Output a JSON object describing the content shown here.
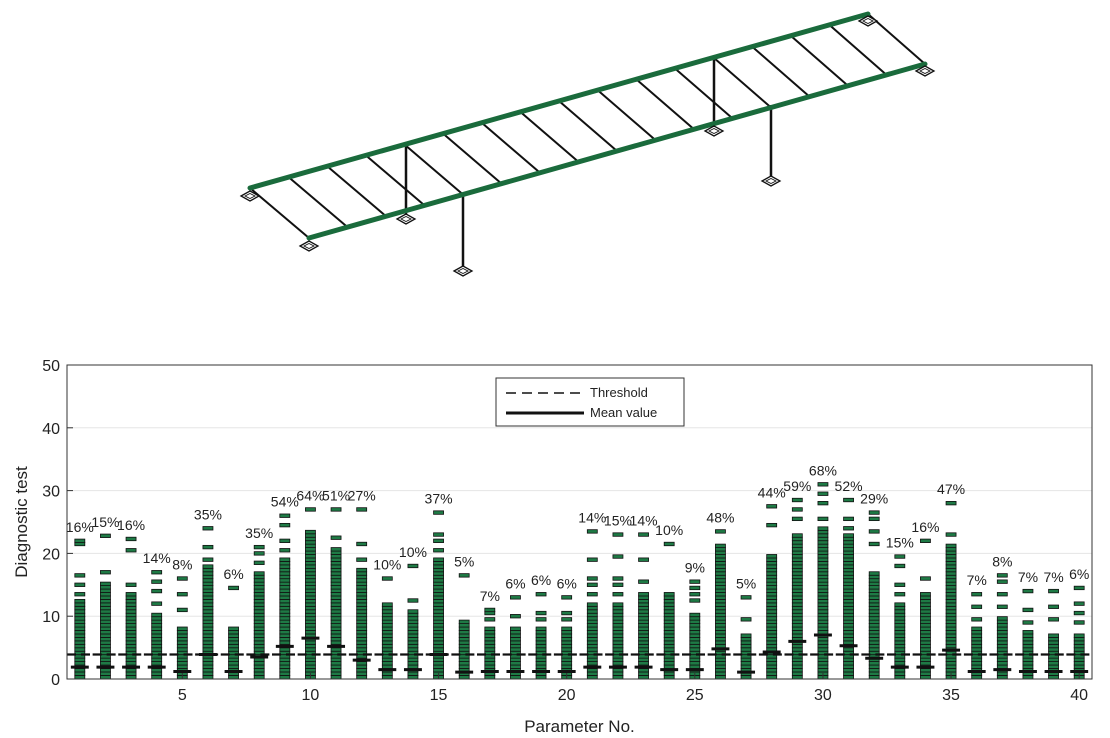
{
  "colors": {
    "beam": "#1a6b3c",
    "member": "#111111",
    "marker_fill": "#1e7a45",
    "marker_edge": "#111111",
    "grid": "#e5e5e5",
    "axis": "#333333"
  },
  "bridge_icon": "truss-bridge-schematic",
  "chart_data": {
    "type": "scatter",
    "title": "",
    "xlabel": "Parameter No.",
    "ylabel": "Diagnostic test",
    "xlim": [
      0.5,
      40.5
    ],
    "ylim": [
      0,
      50
    ],
    "xticks": [
      5,
      10,
      15,
      20,
      25,
      30,
      35,
      40
    ],
    "yticks": [
      0,
      10,
      20,
      30,
      40,
      50
    ],
    "grid": "horizontal",
    "legend": {
      "placement": "top-center",
      "entries": [
        {
          "label": "Threshold",
          "style": "dashed"
        },
        {
          "label": "Mean value",
          "style": "solid"
        }
      ]
    },
    "parameters": [
      1,
      2,
      3,
      4,
      5,
      6,
      7,
      8,
      9,
      10,
      11,
      12,
      13,
      14,
      15,
      16,
      17,
      18,
      19,
      20,
      21,
      22,
      23,
      24,
      25,
      26,
      27,
      28,
      29,
      30,
      31,
      32,
      33,
      34,
      35,
      36,
      37,
      38,
      39,
      40
    ],
    "percent_labels": [
      "16%",
      "15%",
      "16%",
      "14%",
      "8%",
      "35%",
      "6%",
      "35%",
      "54%",
      "64%",
      "51%",
      "27%",
      "10%",
      "10%",
      "37%",
      "5%",
      "7%",
      "6%",
      "6%",
      "6%",
      "14%",
      "15%",
      "14%",
      "10%",
      "9%",
      "48%",
      "5%",
      "44%",
      "59%",
      "68%",
      "52%",
      "29%",
      "15%",
      "16%",
      "47%",
      "7%",
      "8%",
      "7%",
      "7%",
      "6%"
    ],
    "threshold": [
      3.9,
      3.9,
      3.9,
      3.9,
      3.9,
      3.9,
      3.9,
      3.9,
      3.9,
      3.9,
      3.9,
      3.9,
      3.9,
      3.9,
      3.9,
      3.9,
      3.9,
      3.9,
      3.9,
      3.9,
      3.9,
      3.9,
      3.9,
      3.9,
      3.9,
      3.9,
      3.9,
      3.9,
      3.9,
      3.9,
      3.9,
      3.9,
      3.9,
      3.9,
      3.9,
      3.9,
      3.9,
      3.9,
      3.9,
      3.9
    ],
    "mean_value": [
      1.9,
      1.9,
      1.9,
      1.9,
      1.2,
      3.9,
      1.2,
      3.5,
      5.2,
      6.5,
      5.2,
      3.0,
      1.5,
      1.5,
      3.9,
      1.1,
      1.2,
      1.2,
      1.2,
      1.2,
      1.9,
      1.9,
      1.9,
      1.5,
      1.5,
      4.8,
      1.1,
      4.3,
      6.0,
      7.0,
      5.3,
      3.3,
      1.9,
      1.9,
      4.6,
      1.2,
      1.5,
      1.2,
      1.2,
      1.2
    ],
    "dense_max": [
      12.5,
      15.5,
      13.5,
      10.5,
      8.5,
      18.0,
      8.5,
      17.0,
      19.5,
      23.5,
      21.0,
      17.5,
      12.0,
      11.0,
      19.0,
      9.5,
      8.5,
      8.5,
      8.0,
      8.0,
      12.0,
      12.0,
      14.0,
      13.5,
      10.5,
      21.5,
      7.0,
      20.0,
      23.0,
      24.0,
      23.0,
      17.0,
      12.0,
      14.0,
      21.5,
      8.0,
      10.0,
      7.5,
      7.0,
      7.0
    ],
    "outliers": [
      [
        13.5,
        15.0,
        16.5,
        21.5,
        22.0
      ],
      [
        17.0,
        22.8
      ],
      [
        15.0,
        20.5,
        22.3
      ],
      [
        12.0,
        14.0,
        15.5,
        17.0
      ],
      [
        11.0,
        13.5,
        16.0
      ],
      [
        19.0,
        21.0,
        24.0
      ],
      [
        14.5
      ],
      [
        18.5,
        20.0,
        21.0
      ],
      [
        20.5,
        22.0,
        24.5,
        26.0
      ],
      [
        27.0
      ],
      [
        22.5,
        27.0
      ],
      [
        19.0,
        21.5,
        27.0
      ],
      [
        16.0
      ],
      [
        12.5,
        18.0
      ],
      [
        20.5,
        22.0,
        23.0,
        26.5
      ],
      [
        16.5
      ],
      [
        9.5,
        10.5,
        11.0
      ],
      [
        10.0,
        13.0
      ],
      [
        9.5,
        10.5,
        13.5
      ],
      [
        9.5,
        10.5,
        13.0
      ],
      [
        13.5,
        15.0,
        16.0,
        19.0,
        23.5
      ],
      [
        13.5,
        15.0,
        16.0,
        19.5,
        23.0
      ],
      [
        15.5,
        19.0,
        23.0
      ],
      [
        21.5
      ],
      [
        12.5,
        13.5,
        14.5,
        15.5
      ],
      [
        23.5
      ],
      [
        9.5,
        13.0
      ],
      [
        24.5,
        27.5
      ],
      [
        25.5,
        27.0,
        28.5
      ],
      [
        25.5,
        28.0,
        29.5,
        31.0
      ],
      [
        24.0,
        25.5,
        28.5
      ],
      [
        21.5,
        23.5,
        25.5,
        26.5
      ],
      [
        13.5,
        15.0,
        18.0,
        19.5
      ],
      [
        16.0,
        22.0
      ],
      [
        23.0,
        28.0
      ],
      [
        9.5,
        11.5,
        13.5
      ],
      [
        11.5,
        13.5,
        15.5,
        16.5
      ],
      [
        9.0,
        11.0,
        14.0
      ],
      [
        9.5,
        11.5,
        14.0
      ],
      [
        9.0,
        10.5,
        12.0,
        14.5
      ]
    ]
  }
}
